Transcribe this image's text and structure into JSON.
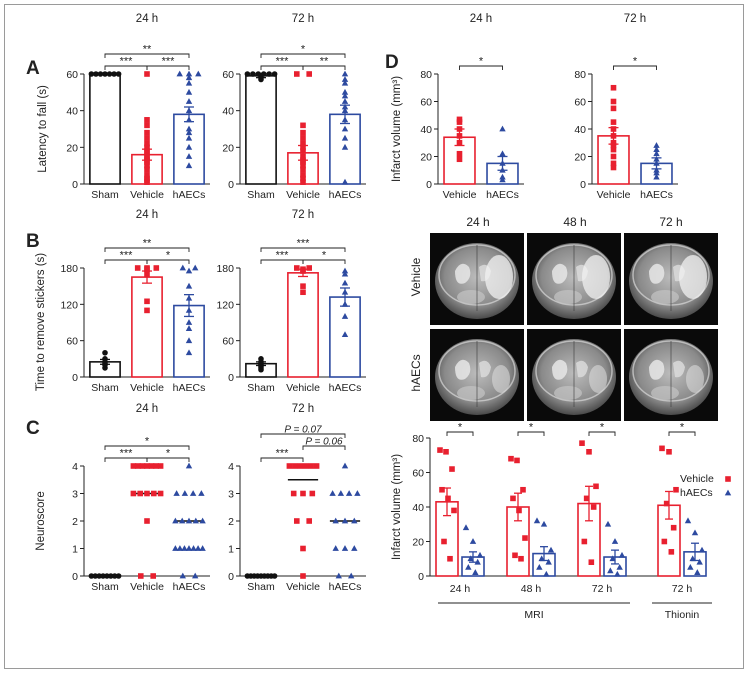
{
  "colors": {
    "sham": "#111111",
    "vehicle": "#e8202f",
    "haecs": "#2d4aa0"
  },
  "panels": {
    "A": "A",
    "B": "B",
    "C": "C",
    "D": "D"
  },
  "mri_images": {
    "col_labels": [
      "24 h",
      "48 h",
      "72 h"
    ],
    "row_labels": [
      "Vehicle",
      "hAECs"
    ]
  },
  "chart_data": [
    {
      "id": "A-24",
      "type": "scatter-bar",
      "title": "24 h",
      "ylabel": "Latency to fall (s)",
      "categories": [
        "Sham",
        "Vehicle",
        "hAECs"
      ],
      "ylim": [
        0,
        60
      ],
      "yticks": [
        0,
        20,
        40,
        60
      ],
      "bars": [
        60,
        16,
        38
      ],
      "errors": [
        0,
        3,
        4
      ],
      "points": [
        [
          60,
          60,
          60,
          60,
          60,
          60,
          60
        ],
        [
          60,
          35,
          32,
          28,
          25,
          22,
          20,
          18,
          17,
          15,
          14,
          13,
          12,
          10,
          8,
          5,
          3,
          2,
          1
        ],
        [
          60,
          60,
          60,
          58,
          55,
          50,
          45,
          40,
          35,
          30,
          28,
          25,
          20,
          15,
          10
        ]
      ],
      "brackets": [
        {
          "from": 0,
          "to": 2,
          "label": "**",
          "level": 1
        },
        {
          "from": 0,
          "to": 1,
          "label": "***",
          "level": 0
        },
        {
          "from": 1,
          "to": 2,
          "label": "***",
          "level": 0
        }
      ]
    },
    {
      "id": "A-72",
      "type": "scatter-bar",
      "title": "72 h",
      "ylabel": "",
      "categories": [
        "Sham",
        "Vehicle",
        "hAECs"
      ],
      "ylim": [
        0,
        60
      ],
      "yticks": [
        0,
        20,
        40,
        60
      ],
      "bars": [
        59,
        17,
        38
      ],
      "errors": [
        1,
        4,
        5
      ],
      "points": [
        [
          60,
          60,
          60,
          60,
          60,
          60,
          59,
          58,
          57
        ],
        [
          60,
          60,
          32,
          28,
          25,
          22,
          20,
          18,
          15,
          13,
          12,
          10,
          8,
          5,
          3,
          1
        ],
        [
          60,
          57,
          55,
          50,
          48,
          45,
          42,
          40,
          35,
          30,
          25,
          20,
          1
        ]
      ],
      "brackets": [
        {
          "from": 0,
          "to": 2,
          "label": "*",
          "level": 1
        },
        {
          "from": 0,
          "to": 1,
          "label": "***",
          "level": 0
        },
        {
          "from": 1,
          "to": 2,
          "label": "**",
          "level": 0
        }
      ]
    },
    {
      "id": "B-24",
      "type": "scatter-bar",
      "title": "24 h",
      "ylabel": "Time to remove stickers (s)",
      "categories": [
        "Sham",
        "Vehicle",
        "hAECs"
      ],
      "ylim": [
        0,
        180
      ],
      "yticks": [
        0,
        60,
        120,
        180
      ],
      "bars": [
        25,
        165,
        118
      ],
      "errors": [
        4,
        10,
        18
      ],
      "points": [
        [
          40,
          30,
          25,
          22,
          20,
          15
        ],
        [
          180,
          180,
          180,
          178,
          170,
          125,
          110
        ],
        [
          180,
          180,
          175,
          150,
          130,
          110,
          90,
          80,
          60,
          40
        ]
      ],
      "brackets": [
        {
          "from": 0,
          "to": 2,
          "label": "**",
          "level": 1
        },
        {
          "from": 0,
          "to": 1,
          "label": "***",
          "level": 0
        },
        {
          "from": 1,
          "to": 2,
          "label": "*",
          "level": 0
        }
      ]
    },
    {
      "id": "B-72",
      "type": "scatter-bar",
      "title": "72 h",
      "ylabel": "",
      "categories": [
        "Sham",
        "Vehicle",
        "hAECs"
      ],
      "ylim": [
        0,
        180
      ],
      "yticks": [
        0,
        60,
        120,
        180
      ],
      "bars": [
        22,
        172,
        132
      ],
      "errors": [
        3,
        6,
        15
      ],
      "points": [
        [
          30,
          25,
          22,
          20,
          18,
          15,
          12
        ],
        [
          180,
          180,
          178,
          175,
          150,
          140
        ],
        [
          175,
          170,
          155,
          140,
          120,
          100,
          70
        ]
      ],
      "brackets": [
        {
          "from": 0,
          "to": 2,
          "label": "***",
          "level": 1
        },
        {
          "from": 0,
          "to": 1,
          "label": "***",
          "level": 0
        },
        {
          "from": 1,
          "to": 2,
          "label": "*",
          "level": 0
        }
      ]
    },
    {
      "id": "C-24",
      "type": "scatter-median",
      "title": "24 h",
      "ylabel": "Neuroscore",
      "categories": [
        "Sham",
        "Vehicle",
        "hAECs"
      ],
      "ylim": [
        0,
        4
      ],
      "yticks": [
        0,
        1,
        2,
        3,
        4
      ],
      "medians": [
        0,
        3,
        2
      ],
      "points": [
        [
          0,
          0,
          0,
          0,
          0,
          0,
          0,
          0
        ],
        [
          4,
          4,
          4,
          4,
          4,
          4,
          4,
          3,
          3,
          3,
          3,
          3,
          2,
          0,
          0
        ],
        [
          4,
          3,
          3,
          3,
          3,
          2,
          2,
          2,
          2,
          2,
          1,
          1,
          1,
          1,
          1,
          1,
          1,
          0,
          0
        ]
      ],
      "brackets": [
        {
          "from": 0,
          "to": 2,
          "label": "*",
          "level": 1
        },
        {
          "from": 0,
          "to": 1,
          "label": "***",
          "level": 0
        },
        {
          "from": 1,
          "to": 2,
          "label": "*",
          "level": 0
        }
      ]
    },
    {
      "id": "C-72",
      "type": "scatter-median",
      "title": "72 h",
      "ylabel": "",
      "categories": [
        "Sham",
        "Vehicle",
        "hAECs"
      ],
      "ylim": [
        0,
        4
      ],
      "yticks": [
        0,
        1,
        2,
        3,
        4
      ],
      "medians": [
        0,
        3.5,
        2
      ],
      "points": [
        [
          0,
          0,
          0,
          0,
          0,
          0,
          0,
          0,
          0
        ],
        [
          4,
          4,
          4,
          4,
          4,
          4,
          3,
          3,
          3,
          2,
          2,
          1,
          0
        ],
        [
          4,
          3,
          3,
          3,
          3,
          2,
          2,
          2,
          1,
          1,
          1,
          0,
          0
        ]
      ],
      "brackets": [
        {
          "from": 0,
          "to": 2,
          "label": "P = 0.07",
          "level": 2
        },
        {
          "from": 1,
          "to": 2,
          "label": "P = 0.06",
          "level": 1
        },
        {
          "from": 0,
          "to": 1,
          "label": "***",
          "level": 0
        }
      ]
    },
    {
      "id": "D-24",
      "type": "scatter-bar",
      "title": "24 h",
      "ylabel": "Infarct volume (mm³)",
      "categories": [
        "Vehicle",
        "hAECs"
      ],
      "ylim": [
        0,
        80
      ],
      "yticks": [
        0,
        20,
        40,
        60,
        80
      ],
      "bars": [
        34,
        15
      ],
      "errors": [
        6,
        5
      ],
      "points": [
        [
          47,
          45,
          40,
          35,
          30,
          22,
          18
        ],
        [
          40,
          22,
          15,
          10,
          5,
          3
        ]
      ],
      "brackets": [
        {
          "from": 0,
          "to": 1,
          "label": "*",
          "level": 0
        }
      ]
    },
    {
      "id": "D-72",
      "type": "scatter-bar",
      "title": "72 h",
      "ylabel": "",
      "categories": [
        "Vehicle",
        "hAECs"
      ],
      "ylim": [
        0,
        80
      ],
      "yticks": [
        0,
        20,
        40,
        60,
        80
      ],
      "bars": [
        35,
        15
      ],
      "errors": [
        6,
        4
      ],
      "points": [
        [
          70,
          60,
          55,
          45,
          40,
          35,
          30,
          28,
          25,
          20,
          15,
          12
        ],
        [
          28,
          25,
          22,
          18,
          15,
          10,
          8,
          5
        ]
      ],
      "brackets": [
        {
          "from": 0,
          "to": 1,
          "label": "*",
          "level": 0
        }
      ]
    },
    {
      "id": "infarct-time",
      "type": "scatter-bar-grouped",
      "ylabel": "Infarct volume (mm³)",
      "ylim": [
        0,
        80
      ],
      "yticks": [
        0,
        20,
        40,
        60,
        80
      ],
      "groups": [
        "24 h",
        "48 h",
        "72 h",
        "72 h"
      ],
      "group_brackets": [
        "MRI",
        "Thionin"
      ],
      "legend": [
        "Vehicle",
        "hAECs"
      ],
      "series": [
        {
          "name": "Vehicle",
          "bars": [
            43,
            40,
            42,
            41
          ],
          "errors": [
            8,
            8,
            10,
            8
          ],
          "points": [
            [
              73,
              72,
              62,
              50,
              45,
              38,
              20,
              10
            ],
            [
              68,
              67,
              50,
              45,
              38,
              22,
              12,
              10
            ],
            [
              77,
              72,
              52,
              45,
              40,
              20,
              8
            ],
            [
              74,
              72,
              50,
              42,
              28,
              20,
              14
            ]
          ]
        },
        {
          "name": "hAECs",
          "bars": [
            11,
            13,
            11,
            14
          ],
          "errors": [
            3,
            4,
            4,
            5
          ],
          "points": [
            [
              28,
              20,
              12,
              10,
              8,
              5,
              2
            ],
            [
              32,
              30,
              15,
              10,
              8,
              5,
              1
            ],
            [
              30,
              20,
              12,
              10,
              5,
              3,
              1
            ],
            [
              32,
              25,
              15,
              10,
              8,
              5,
              2
            ]
          ]
        }
      ],
      "brackets": [
        {
          "group": 0,
          "label": "*"
        },
        {
          "group": 1,
          "label": "*"
        },
        {
          "group": 2,
          "label": "*"
        },
        {
          "group": 3,
          "label": "*"
        }
      ]
    }
  ]
}
